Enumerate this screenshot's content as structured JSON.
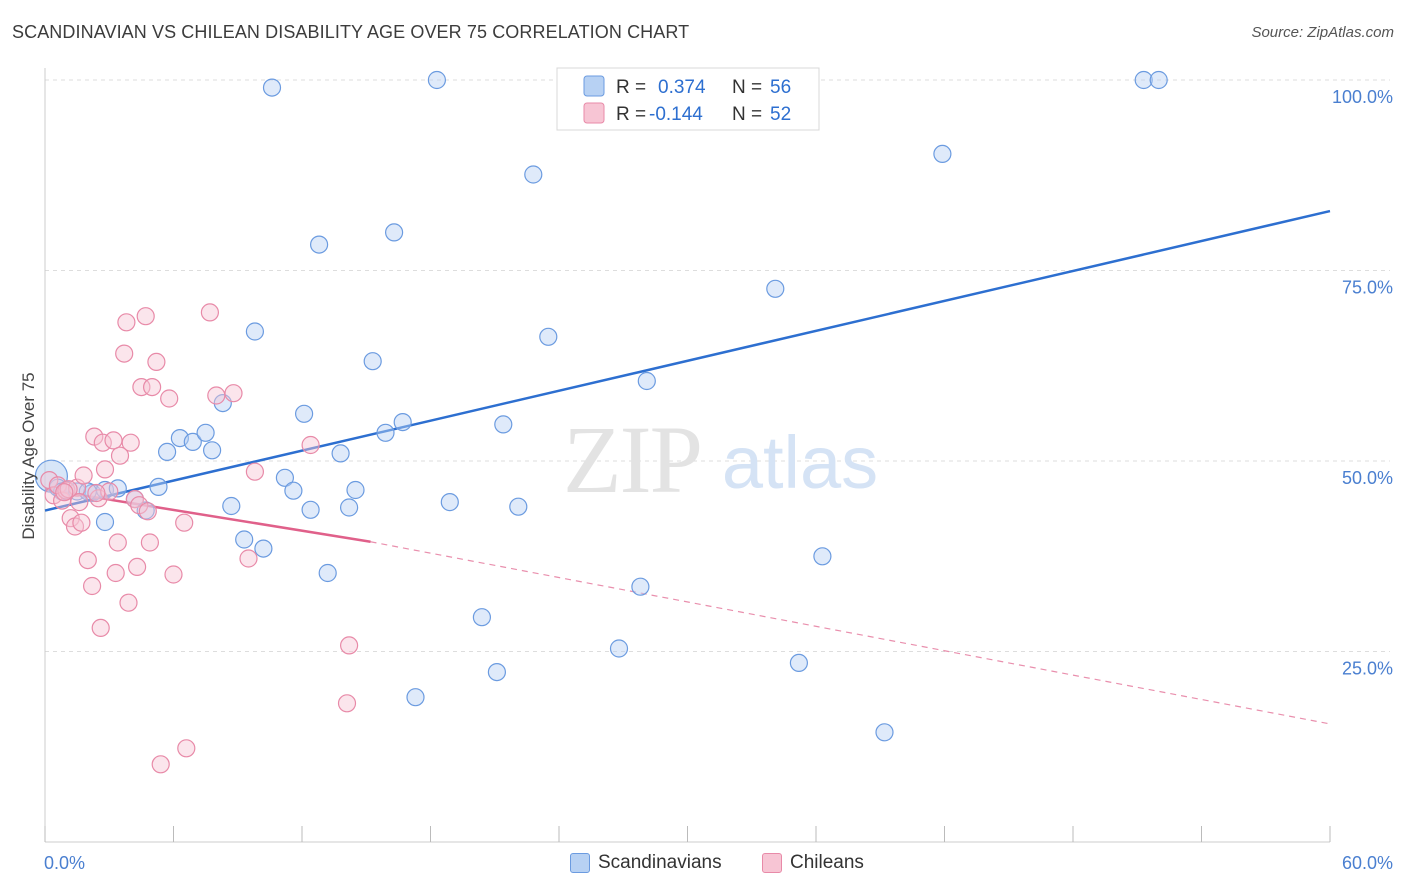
{
  "header": {
    "title": "SCANDINAVIAN VS CHILEAN DISABILITY AGE OVER 75 CORRELATION CHART",
    "source": "Source: ZipAtlas.com"
  },
  "watermark": {
    "zip": "ZIP",
    "atlas": "atlas"
  },
  "colors": {
    "blue_fill": "#b7d1f3",
    "blue_stroke": "#6b9be0",
    "blue_line": "#2d6fd0",
    "pink_fill": "#f7c5d4",
    "pink_stroke": "#e88aa8",
    "pink_line": "#e0608a",
    "grid": "#dddddd",
    "tick_label_blue": "#4a7fd0"
  },
  "legend_top": {
    "rows": [
      {
        "r_label": "R =",
        "r_value": "0.374",
        "n_label": "N =",
        "n_value": "56"
      },
      {
        "r_label": "R =",
        "r_value": "-0.144",
        "n_label": "N =",
        "n_value": "52"
      }
    ]
  },
  "legend_bottom": {
    "items": [
      {
        "label": "Scandinavians"
      },
      {
        "label": "Chileans"
      }
    ]
  },
  "chart_data": {
    "type": "scatter",
    "title": "SCANDINAVIAN VS CHILEAN DISABILITY AGE OVER 75 CORRELATION CHART",
    "xlabel": "",
    "ylabel": "Disability Age Over 75",
    "xlim": [
      0,
      60
    ],
    "ylim": [
      0,
      100
    ],
    "x_tick_labels": [
      "0.0%",
      "60.0%"
    ],
    "y_tick_labels": [
      "25.0%",
      "50.0%",
      "75.0%",
      "100.0%"
    ],
    "y_ticks": [
      25,
      50,
      75,
      100
    ],
    "grid": true,
    "legend_placement": "top-center",
    "series": [
      {
        "name": "Scandinavians",
        "color": "#6b9be0",
        "R": 0.374,
        "N": 56,
        "trend": {
          "x": [
            0,
            60
          ],
          "y": [
            43.5,
            82.8
          ]
        },
        "points": [
          [
            0.3,
            48
          ],
          [
            0.6,
            46.5
          ],
          [
            0.8,
            46.0
          ],
          [
            1.0,
            46.2
          ],
          [
            1.5,
            46.0
          ],
          [
            2.2,
            45.8
          ],
          [
            2.8,
            46.2
          ],
          [
            2.8,
            42
          ],
          [
            3.4,
            46.4
          ],
          [
            4.2,
            45.0
          ],
          [
            4.7,
            43.5
          ],
          [
            5.3,
            46.6
          ],
          [
            5.7,
            51.2
          ],
          [
            6.3,
            53.0
          ],
          [
            6.9,
            52.5
          ],
          [
            7.5,
            53.7
          ],
          [
            7.8,
            51.4
          ],
          [
            8.3,
            57.6
          ],
          [
            8.7,
            44.1
          ],
          [
            9.3,
            39.7
          ],
          [
            9.8,
            67.0
          ],
          [
            10.2,
            38.5
          ],
          [
            10.6,
            99.0
          ],
          [
            11.2,
            47.8
          ],
          [
            11.6,
            46.1
          ],
          [
            12.1,
            56.2
          ],
          [
            12.4,
            43.6
          ],
          [
            12.8,
            78.4
          ],
          [
            13.2,
            35.3
          ],
          [
            13.8,
            51.0
          ],
          [
            14.2,
            43.9
          ],
          [
            14.5,
            46.2
          ],
          [
            15.3,
            63.1
          ],
          [
            15.9,
            53.7
          ],
          [
            16.3,
            80.0
          ],
          [
            16.7,
            55.1
          ],
          [
            17.3,
            19.0
          ],
          [
            18.3,
            100.0
          ],
          [
            18.9,
            44.6
          ],
          [
            20.4,
            29.5
          ],
          [
            21.1,
            22.3
          ],
          [
            21.4,
            54.8
          ],
          [
            22.1,
            44.0
          ],
          [
            22.8,
            87.6
          ],
          [
            23.5,
            66.3
          ],
          [
            26.8,
            25.4
          ],
          [
            27.8,
            33.5
          ],
          [
            28.1,
            60.5
          ],
          [
            34.1,
            72.6
          ],
          [
            35.2,
            23.5
          ],
          [
            36.3,
            37.5
          ],
          [
            39.2,
            14.4
          ],
          [
            41.9,
            90.3
          ],
          [
            51.3,
            100.0
          ],
          [
            52.0,
            100.0
          ],
          [
            2.0,
            46.0
          ]
        ]
      },
      {
        "name": "Chileans",
        "color": "#e88aa8",
        "R": -0.144,
        "N": 52,
        "trend": {
          "x": [
            0,
            15.2
          ],
          "y": [
            46.3,
            39.4
          ],
          "dashed_to": {
            "x": 60,
            "y": 15.5
          }
        },
        "points": [
          [
            0.2,
            47.5
          ],
          [
            0.4,
            45.5
          ],
          [
            0.6,
            46.8
          ],
          [
            0.8,
            44.8
          ],
          [
            1.0,
            46.1
          ],
          [
            1.2,
            42.5
          ],
          [
            1.4,
            41.4
          ],
          [
            1.5,
            46.5
          ],
          [
            1.6,
            44.6
          ],
          [
            1.7,
            41.9
          ],
          [
            1.8,
            48.1
          ],
          [
            2.0,
            37.0
          ],
          [
            2.2,
            33.6
          ],
          [
            2.3,
            53.2
          ],
          [
            2.5,
            45.1
          ],
          [
            2.6,
            28.1
          ],
          [
            2.7,
            52.4
          ],
          [
            2.8,
            48.9
          ],
          [
            3.0,
            46.0
          ],
          [
            3.2,
            52.7
          ],
          [
            3.3,
            35.3
          ],
          [
            3.4,
            39.3
          ],
          [
            3.5,
            50.7
          ],
          [
            3.7,
            64.1
          ],
          [
            3.8,
            68.2
          ],
          [
            3.9,
            31.4
          ],
          [
            4.0,
            52.4
          ],
          [
            4.2,
            45.0
          ],
          [
            4.3,
            36.1
          ],
          [
            4.4,
            44.2
          ],
          [
            4.5,
            59.7
          ],
          [
            4.7,
            69.0
          ],
          [
            4.8,
            43.4
          ],
          [
            4.9,
            39.3
          ],
          [
            5.0,
            59.7
          ],
          [
            5.2,
            63.0
          ],
          [
            5.4,
            10.2
          ],
          [
            5.8,
            58.2
          ],
          [
            6.0,
            35.1
          ],
          [
            6.5,
            41.9
          ],
          [
            6.6,
            12.3
          ],
          [
            7.7,
            69.5
          ],
          [
            8.0,
            58.6
          ],
          [
            8.8,
            58.9
          ],
          [
            9.5,
            37.2
          ],
          [
            9.8,
            48.6
          ],
          [
            12.4,
            52.1
          ],
          [
            14.2,
            25.8
          ],
          [
            14.1,
            18.2
          ],
          [
            1.1,
            46.3
          ],
          [
            0.9,
            45.9
          ],
          [
            2.4,
            45.8
          ]
        ]
      }
    ]
  }
}
